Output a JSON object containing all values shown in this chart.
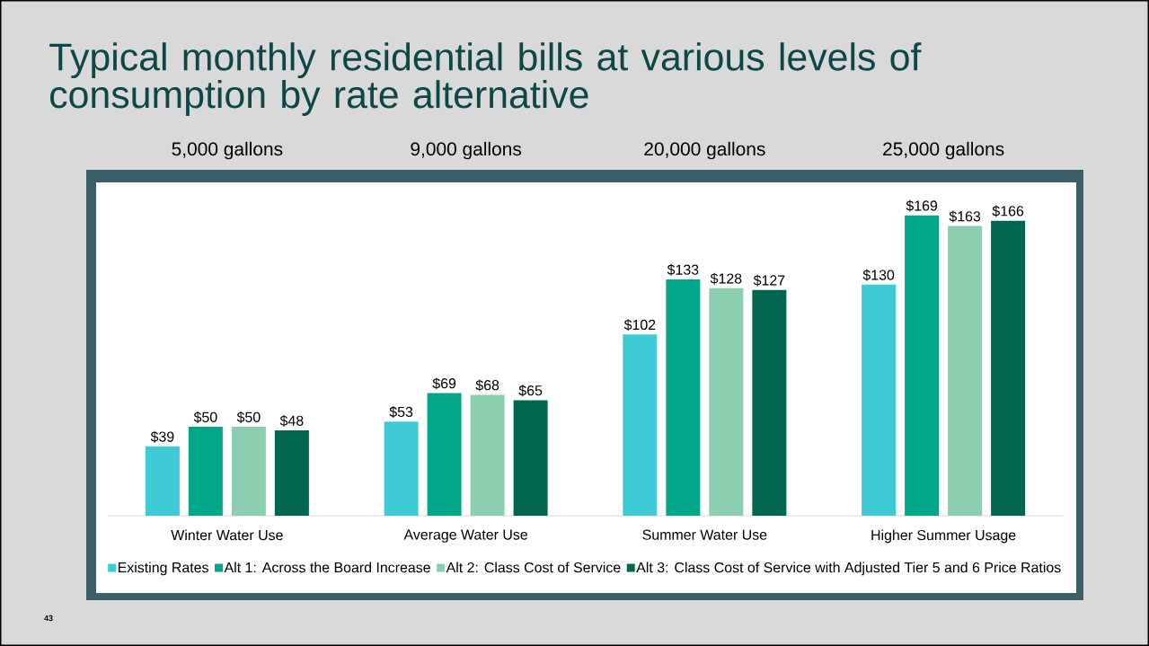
{
  "chart_data": {
    "type": "bar",
    "title": "Typical monthly residential bills at various levels of consumption by rate alternative",
    "categories": [
      "Winter Water Use",
      "Average Water Use",
      "Summer Water Use",
      "Higher Summer Usage"
    ],
    "series": [
      {
        "name": "Existing Rates",
        "color": "#3ecbd6",
        "values": [
          39,
          53,
          102,
          130
        ],
        "value_labels": [
          "$39",
          "$53",
          "$102",
          "$130"
        ]
      },
      {
        "name": "Alt 1: Across the Board Increase",
        "color": "#00a688",
        "values": [
          50,
          69,
          133,
          169
        ],
        "value_labels": [
          "$50",
          "$69",
          "$133",
          "$169"
        ]
      },
      {
        "name": "Alt 2: Class Cost of Service",
        "color": "#8ccfb0",
        "values": [
          50,
          68,
          128,
          163
        ],
        "value_labels": [
          "$50",
          "$68",
          "$128",
          "$163"
        ]
      },
      {
        "name": "Alt 3: Class Cost of Service with Adjusted Tier 5 and 6 Price Ratios",
        "color": "#006650",
        "values": [
          48,
          65,
          127,
          166
        ],
        "value_labels": [
          "$48",
          "$65",
          "$127",
          "$166"
        ]
      }
    ],
    "tick_labels": "x",
    "legend": "bottom",
    "annotations": [
      "5,000 gallons",
      "9,000 gallons",
      "20,000 gallons",
      "25,000 gallons",
      "43"
    ]
  }
}
